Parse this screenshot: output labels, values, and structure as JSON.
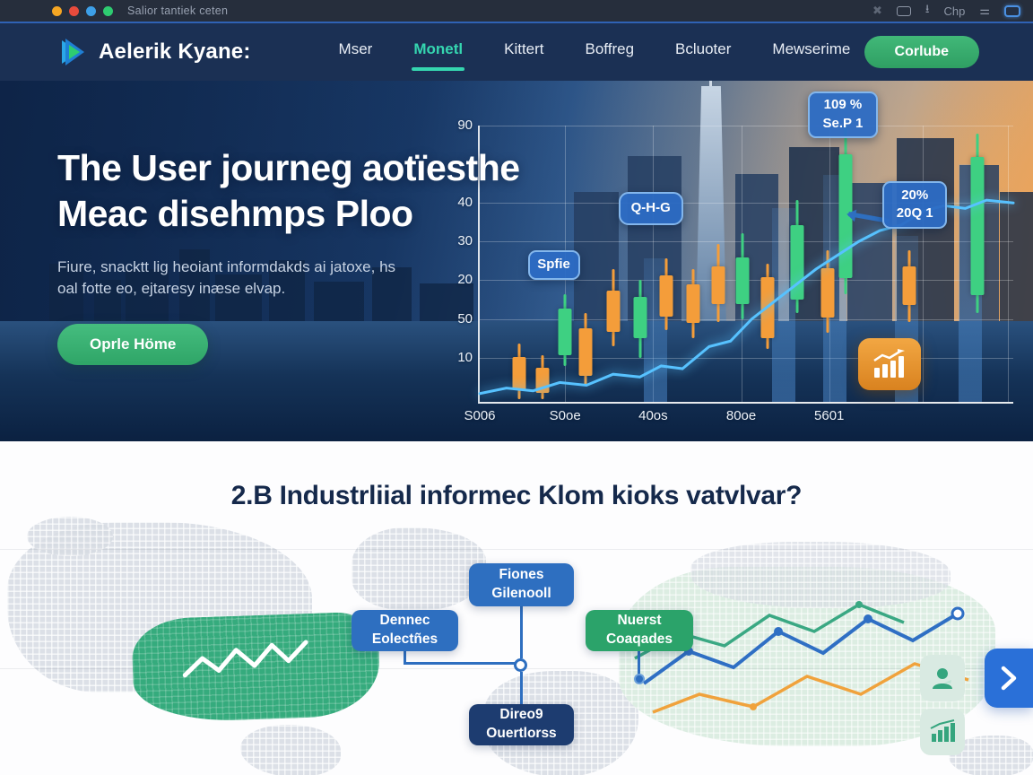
{
  "chrome": {
    "title": "Salior tantiek ceten",
    "toolbar_label": "Chp",
    "dot_colors": [
      "#f5a623",
      "#e84b3c",
      "#3da0e8",
      "#2ecc71"
    ]
  },
  "nav": {
    "brand": "Aelerik Kyane:",
    "items": [
      "Mser",
      "Monetl",
      "Kittert",
      "Boffreg",
      "Bcluoter",
      "Mewserime"
    ],
    "active_item": "Monetl",
    "cta": "Corlube"
  },
  "hero": {
    "title_line1": "The User journeg aotïesthe",
    "title_line2": "Meac disehmps Ploo",
    "description_line1": "Fiure, snacktt lig heoiant informdakds ai jatoxe, hs",
    "description_line2": "oal fotte eo, ejtaresy inæse elvap.",
    "cta": "Oprle Höme"
  },
  "chart_data": {
    "type": "candlestick+line",
    "title": "",
    "y_ticks": [
      "90",
      "40",
      "30",
      "20",
      "50",
      "10"
    ],
    "y_tick_pos": [
      0,
      28,
      42,
      56,
      70,
      84
    ],
    "x_ticks": [
      "S006",
      "S0oe",
      "40os",
      "80oe",
      "5601"
    ],
    "x_tick_pos": [
      0,
      16,
      32.5,
      49,
      65.5
    ],
    "badges": {
      "left": "Spfie",
      "mid": "Q-H-G",
      "top_right_line1": "109 %",
      "top_right_line2": "Se.P 1",
      "right_line1": "20%",
      "right_line2": "20Q 1"
    },
    "colors": {
      "up": "#3ed082",
      "down": "#f49d3a",
      "line": "#57c2ff",
      "badge": "#2c6cc4"
    },
    "candles": [
      [
        7.4,
        79,
        99,
        83.9,
        12,
        "o"
      ],
      [
        11.7,
        83,
        99,
        87.7,
        9,
        "o"
      ],
      [
        15.9,
        61,
        87,
        66.1,
        17,
        "g"
      ],
      [
        19.9,
        68,
        94,
        73.5,
        17,
        "o"
      ],
      [
        25.0,
        52,
        80,
        59.7,
        15,
        "o"
      ],
      [
        30.0,
        56,
        84,
        61.9,
        15,
        "g"
      ],
      [
        35.0,
        48,
        74,
        54.2,
        15,
        "o"
      ],
      [
        40.0,
        52,
        77,
        57.4,
        14,
        "o"
      ],
      [
        44.7,
        43,
        71,
        51.0,
        13.5,
        "o"
      ],
      [
        49.2,
        39,
        70,
        47.7,
        17,
        "g"
      ],
      [
        53.9,
        50,
        81,
        54.8,
        22,
        "o"
      ],
      [
        59.5,
        27,
        68,
        36.1,
        27,
        "g"
      ],
      [
        65.2,
        45,
        75,
        51.6,
        18,
        "o"
      ],
      [
        68.5,
        0,
        61,
        10.3,
        45,
        "g"
      ],
      [
        80.5,
        45,
        71,
        51.0,
        14,
        "o"
      ],
      [
        93.3,
        3,
        68,
        11.3,
        50,
        "g"
      ]
    ],
    "volume_bars": [
      [
        33,
        52
      ],
      [
        57,
        70
      ],
      [
        66.5,
        82
      ],
      [
        80,
        60
      ],
      [
        92,
        86
      ]
    ],
    "line_points": "0,97 5,95 10,96 15,93 20,94 25,90 30,91 34,87 38,88 43,80 47,78 51,70 55,64 59,58 63,52 67,47 71,42 75,38 79,36 83,31 87,29 91,30 95,27 100,28"
  },
  "section": {
    "title": "2.B Industrliial informec Klom kioks vatvlvar?",
    "nodes": {
      "top": {
        "line1": "Fiones",
        "line2": "Gilenooll"
      },
      "left": {
        "line1": "Dennec",
        "line2": "Eolectñes"
      },
      "right": {
        "line1": "Nuerst",
        "line2": "Coaqades"
      },
      "bottom": {
        "line1": "Direo9",
        "line2": "Ouertlorss"
      }
    }
  }
}
